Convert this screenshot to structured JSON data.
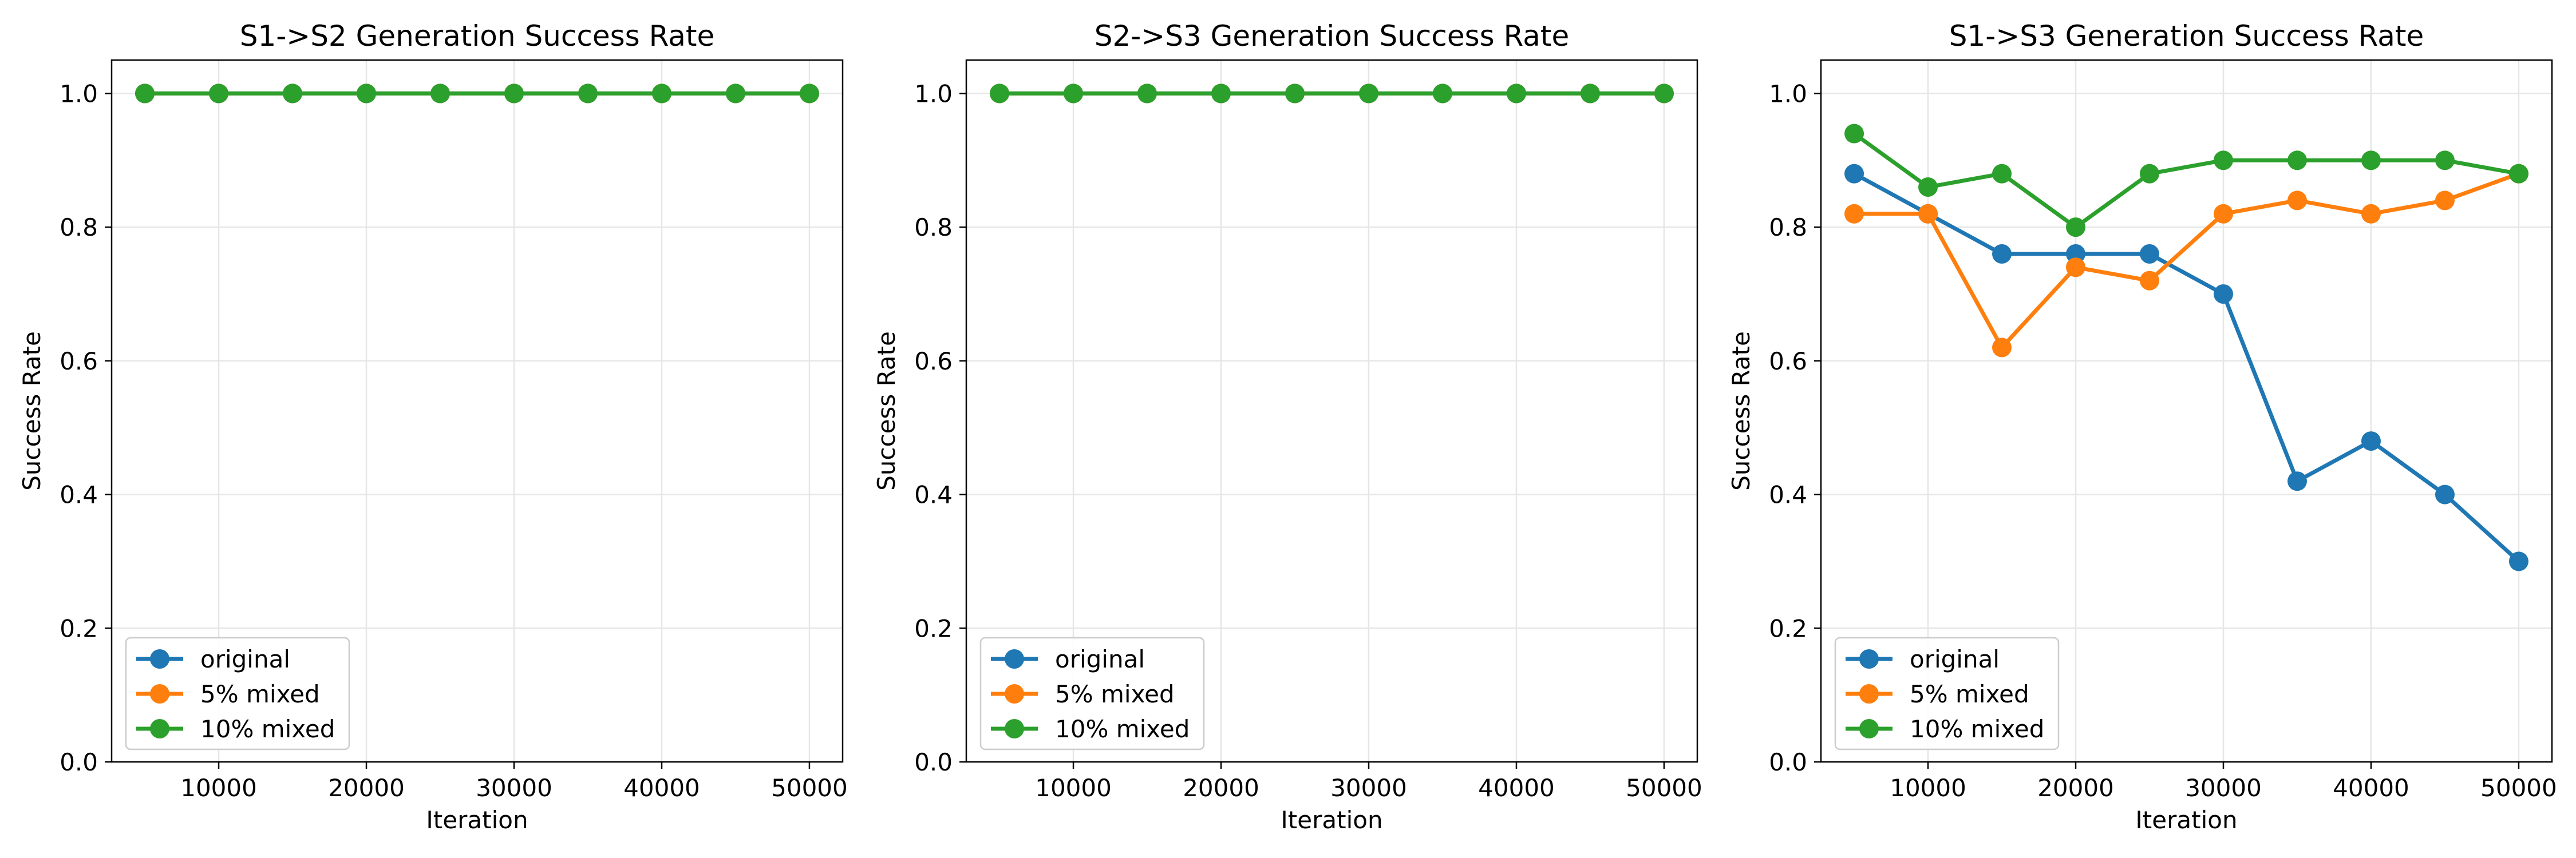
{
  "colors": {
    "original": "#1f77b4",
    "5% mixed": "#ff7f0e",
    "10% mixed": "#2ca02c",
    "grid": "#e6e6e6",
    "axis": "#000000"
  },
  "chart_data": [
    {
      "type": "line",
      "title": "S1->S2 Generation Success Rate",
      "xlabel": "Iteration",
      "ylabel": "Success Rate",
      "xlim": [
        2750,
        52250
      ],
      "ylim": [
        0.0,
        1.05
      ],
      "xticks": [
        10000,
        20000,
        30000,
        40000,
        50000
      ],
      "yticks": [
        "0.0",
        "0.2",
        "0.4",
        "0.6",
        "0.8",
        "1.0"
      ],
      "grid": true,
      "legend": "lower-left",
      "x": [
        5000,
        10000,
        15000,
        20000,
        25000,
        30000,
        35000,
        40000,
        45000,
        50000
      ],
      "series": [
        {
          "name": "original",
          "values": [
            1.0,
            1.0,
            1.0,
            1.0,
            1.0,
            1.0,
            1.0,
            1.0,
            1.0,
            1.0
          ]
        },
        {
          "name": "5% mixed",
          "values": [
            1.0,
            1.0,
            1.0,
            1.0,
            1.0,
            1.0,
            1.0,
            1.0,
            1.0,
            1.0
          ]
        },
        {
          "name": "10% mixed",
          "values": [
            1.0,
            1.0,
            1.0,
            1.0,
            1.0,
            1.0,
            1.0,
            1.0,
            1.0,
            1.0
          ]
        }
      ]
    },
    {
      "type": "line",
      "title": "S2->S3 Generation Success Rate",
      "xlabel": "Iteration",
      "ylabel": "Success Rate",
      "xlim": [
        2750,
        52250
      ],
      "ylim": [
        0.0,
        1.05
      ],
      "xticks": [
        10000,
        20000,
        30000,
        40000,
        50000
      ],
      "yticks": [
        "0.0",
        "0.2",
        "0.4",
        "0.6",
        "0.8",
        "1.0"
      ],
      "grid": true,
      "legend": "lower-left",
      "x": [
        5000,
        10000,
        15000,
        20000,
        25000,
        30000,
        35000,
        40000,
        45000,
        50000
      ],
      "series": [
        {
          "name": "original",
          "values": [
            1.0,
            1.0,
            1.0,
            1.0,
            1.0,
            1.0,
            1.0,
            1.0,
            1.0,
            1.0
          ]
        },
        {
          "name": "5% mixed",
          "values": [
            1.0,
            1.0,
            1.0,
            1.0,
            1.0,
            1.0,
            1.0,
            1.0,
            1.0,
            1.0
          ]
        },
        {
          "name": "10% mixed",
          "values": [
            1.0,
            1.0,
            1.0,
            1.0,
            1.0,
            1.0,
            1.0,
            1.0,
            1.0,
            1.0
          ]
        }
      ]
    },
    {
      "type": "line",
      "title": "S1->S3 Generation Success Rate",
      "xlabel": "Iteration",
      "ylabel": "Success Rate",
      "xlim": [
        2750,
        52250
      ],
      "ylim": [
        0.0,
        1.05
      ],
      "xticks": [
        10000,
        20000,
        30000,
        40000,
        50000
      ],
      "yticks": [
        "0.0",
        "0.2",
        "0.4",
        "0.6",
        "0.8",
        "1.0"
      ],
      "grid": true,
      "legend": "lower-left",
      "x": [
        5000,
        10000,
        15000,
        20000,
        25000,
        30000,
        35000,
        40000,
        45000,
        50000
      ],
      "series": [
        {
          "name": "original",
          "values": [
            0.88,
            0.82,
            0.76,
            0.76,
            0.76,
            0.7,
            0.42,
            0.48,
            0.4,
            0.3
          ]
        },
        {
          "name": "5% mixed",
          "values": [
            0.82,
            0.82,
            0.62,
            0.74,
            0.72,
            0.82,
            0.84,
            0.82,
            0.84,
            0.88
          ]
        },
        {
          "name": "10% mixed",
          "values": [
            0.94,
            0.86,
            0.88,
            0.8,
            0.88,
            0.9,
            0.9,
            0.9,
            0.9,
            0.88
          ]
        }
      ]
    }
  ]
}
